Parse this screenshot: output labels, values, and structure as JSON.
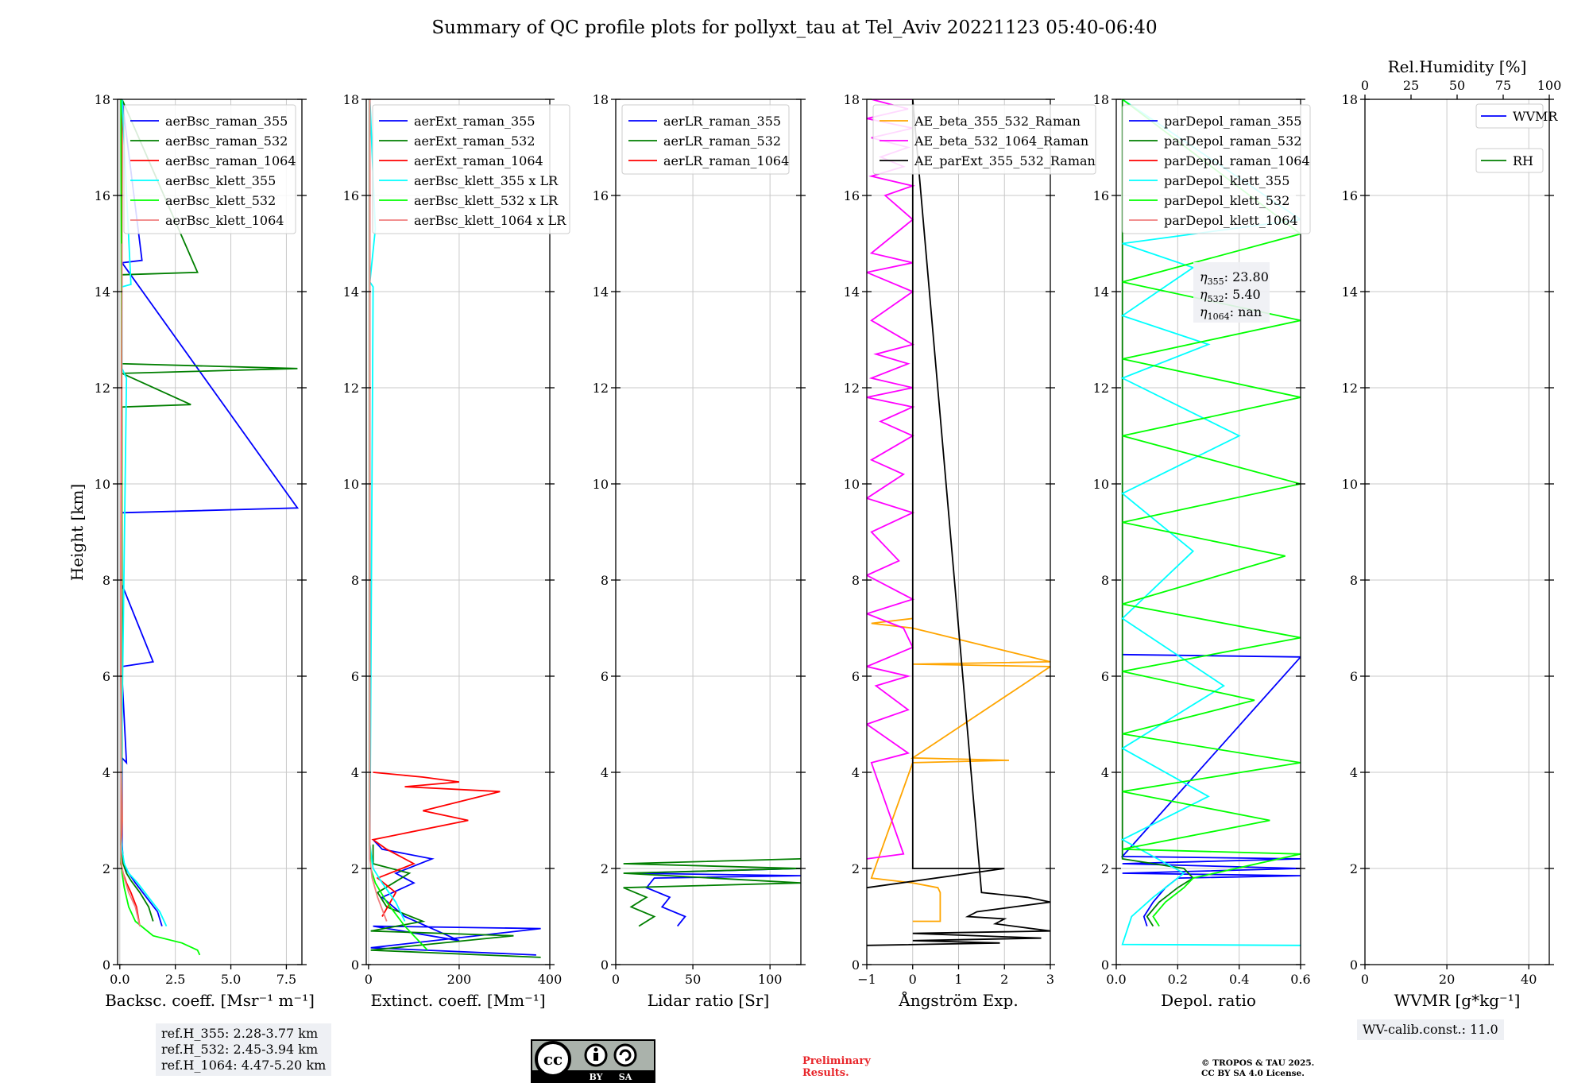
{
  "title": "Summary of QC profile plots for pollyxt_tau at Tel_Aviv 20221123 05:40-06:40",
  "ylabel": "Height [km]",
  "y_ticks": [
    0,
    2,
    4,
    6,
    8,
    10,
    12,
    14,
    16,
    18
  ],
  "chart_data": [
    {
      "type": "line",
      "name": "backscatter",
      "xlabel": "Backsc. coeff. [Msr⁻¹ m⁻¹]",
      "xlim": [
        -0.1,
        8.2
      ],
      "ylim": [
        0,
        18
      ],
      "x_ticks": [
        0,
        2.5,
        5,
        7.5
      ],
      "x_tick_labels": [
        "0.0",
        "2.5",
        "5.0",
        "7.5"
      ],
      "legend": [
        "aerBsc_raman_355",
        "aerBsc_raman_532",
        "aerBsc_raman_1064",
        "aerBsc_klett_355",
        "aerBsc_klett_532",
        "aerBsc_klett_1064"
      ],
      "series": [
        {
          "name": "aerBsc_raman_355",
          "color": "#0000ff",
          "x": [
            1.9,
            1.7,
            1.2,
            0.7,
            0.4,
            0.25,
            0.15,
            0.1,
            0.1,
            0.3,
            0.1,
            0.1,
            1.5,
            0.1,
            0.1,
            0.1,
            8,
            0.1,
            1,
            0.1
          ],
          "y": [
            0.8,
            1.1,
            1.4,
            1.7,
            1.9,
            2.0,
            2.2,
            2.5,
            4.3,
            4.2,
            6.0,
            6.2,
            6.3,
            7.9,
            8.1,
            9.4,
            9.5,
            14.6,
            14.65,
            18
          ]
        },
        {
          "name": "aerBsc_raman_532",
          "color": "#007f00",
          "x": [
            1.5,
            1.3,
            0.9,
            0.5,
            0.3,
            0.15,
            0.1,
            0.05,
            0.1,
            0.1,
            3.2,
            0.1,
            8,
            0.1,
            0.1,
            0.1,
            3.5,
            0.1
          ],
          "y": [
            0.9,
            1.2,
            1.5,
            1.75,
            1.9,
            2.1,
            2.3,
            2.5,
            4.6,
            11.6,
            11.65,
            12.3,
            12.4,
            12.5,
            14.3,
            14.35,
            14.4,
            18
          ]
        },
        {
          "name": "aerBsc_raman_1064",
          "color": "#ff0000",
          "x": [
            0.9,
            0.75,
            0.5,
            0.3,
            0.15,
            0.05,
            0.1,
            0.05,
            0.1
          ],
          "y": [
            0.8,
            1.2,
            1.5,
            1.7,
            1.9,
            2.1,
            3.0,
            6.0,
            18
          ]
        },
        {
          "name": "aerBsc_klett_355",
          "color": "#00ffff",
          "x": [
            2.1,
            1.8,
            1.3,
            0.8,
            0.4,
            0.2,
            0.1,
            0.05,
            0.1,
            0.3,
            0.1,
            0.1,
            0.5,
            0.1
          ],
          "y": [
            0.8,
            1.1,
            1.4,
            1.7,
            1.9,
            2.1,
            2.4,
            2.7,
            5,
            12.2,
            12.4,
            14.1,
            14.15,
            18
          ]
        },
        {
          "name": "aerBsc_klett_532",
          "color": "#00ff00",
          "x": [
            3.6,
            3.5,
            2.8,
            1.5,
            0.7,
            0.4,
            0.2,
            0.1,
            0.05,
            0.1,
            0.05
          ],
          "y": [
            0.2,
            0.3,
            0.45,
            0.6,
            0.9,
            1.2,
            1.6,
            1.9,
            2.2,
            10,
            18
          ]
        },
        {
          "name": "aerBsc_klett_1064",
          "color": "#f08080",
          "x": [
            0.9,
            0.7,
            0.4,
            0.2,
            0.1,
            0.05,
            0.1
          ],
          "y": [
            0.8,
            1.2,
            1.5,
            1.8,
            2.0,
            2.3,
            15
          ]
        }
      ],
      "ref_heights": [
        "ref.H_355: 2.28-3.77 km",
        "ref.H_532: 2.45-3.94 km",
        "ref.H_1064: 4.47-5.20 km"
      ]
    },
    {
      "type": "line",
      "name": "extinction",
      "xlabel": "Extinct. coeff. [Mm⁻¹]",
      "xlim": [
        -5,
        400
      ],
      "ylim": [
        0,
        18
      ],
      "x_ticks": [
        0,
        200,
        400
      ],
      "x_tick_labels": [
        "0",
        "200",
        "400"
      ],
      "legend": [
        "aerExt_raman_355",
        "aerExt_raman_532",
        "aerExt_raman_1064",
        "aerBsc_klett_355 x LR",
        "aerBsc_klett_532 x LR",
        "aerBsc_klett_1064 x LR"
      ],
      "series": [
        {
          "name": "aerExt_raman_355",
          "color": "#0000ff",
          "x": [
            370,
            5,
            380,
            10,
            200,
            80,
            30,
            100,
            60,
            140,
            30,
            10
          ],
          "y": [
            0.2,
            0.35,
            0.75,
            0.8,
            0.5,
            1.0,
            1.4,
            1.7,
            1.9,
            2.2,
            2.4,
            2.6
          ]
        },
        {
          "name": "aerExt_raman_532",
          "color": "#007f00",
          "x": [
            380,
            5,
            320,
            5,
            120,
            40,
            20,
            90,
            10,
            10
          ],
          "y": [
            0.15,
            0.3,
            0.6,
            0.7,
            0.9,
            1.2,
            1.5,
            1.9,
            2.1,
            2.5
          ]
        },
        {
          "name": "aerExt_raman_1064",
          "color": "#ff0000",
          "x": [
            30,
            60,
            20,
            100,
            40,
            10,
            220,
            120,
            290,
            80,
            200,
            120,
            10
          ],
          "y": [
            1.0,
            1.5,
            1.8,
            2.1,
            2.4,
            2.6,
            3.0,
            3.2,
            3.6,
            3.7,
            3.8,
            3.9,
            4.0
          ]
        },
        {
          "name": "aerBsc_klett_355 x LR",
          "color": "#00ffff",
          "x": [
            80,
            60,
            30,
            10,
            3,
            10,
            3,
            15,
            3
          ],
          "y": [
            0.9,
            1.3,
            1.7,
            2.0,
            2.5,
            14.1,
            14.2,
            15.3,
            18
          ]
        },
        {
          "name": "aerBsc_klett_532 x LR",
          "color": "#00ff00",
          "x": [
            130,
            80,
            40,
            15,
            5,
            3,
            3
          ],
          "y": [
            0.3,
            0.8,
            1.3,
            1.7,
            2.0,
            2.5,
            18
          ]
        },
        {
          "name": "aerBsc_klett_1064 x LR",
          "color": "#f08080",
          "x": [
            40,
            20,
            8,
            3,
            3
          ],
          "y": [
            0.9,
            1.4,
            1.8,
            2.2,
            18
          ]
        }
      ]
    },
    {
      "type": "line",
      "name": "lidar_ratio",
      "xlabel": "Lidar ratio [Sr]",
      "xlim": [
        0,
        120
      ],
      "ylim": [
        0,
        18
      ],
      "x_ticks": [
        0,
        50,
        100
      ],
      "x_tick_labels": [
        "0",
        "50",
        "100"
      ],
      "legend": [
        "aerLR_raman_355",
        "aerLR_raman_532",
        "aerLR_raman_1064"
      ],
      "series": [
        {
          "name": "aerLR_raman_355",
          "color": "#0000ff",
          "x": [
            40,
            45,
            30,
            35,
            20,
            25,
            120,
            10,
            120
          ],
          "y": [
            0.8,
            1.0,
            1.2,
            1.4,
            1.6,
            1.8,
            1.85,
            1.9,
            2.0
          ]
        },
        {
          "name": "aerLR_raman_532",
          "color": "#007f00",
          "x": [
            15,
            25,
            10,
            20,
            5,
            120,
            5,
            120,
            5,
            120
          ],
          "y": [
            0.8,
            1.0,
            1.2,
            1.4,
            1.6,
            1.7,
            1.9,
            2.0,
            2.1,
            2.2
          ]
        },
        {
          "name": "aerLR_raman_1064",
          "color": "#ff0000",
          "x": [],
          "y": []
        }
      ]
    },
    {
      "type": "line",
      "name": "angstrom",
      "xlabel": "Ångström Exp.",
      "xlim": [
        -1,
        3
      ],
      "ylim": [
        0,
        18
      ],
      "x_ticks": [
        -1,
        0,
        1,
        2,
        3
      ],
      "x_tick_labels": [
        "−1",
        "0",
        "1",
        "2",
        "3"
      ],
      "legend": [
        "AE_beta_355_532_Raman",
        "AE_beta_532_1064_Raman",
        "AE_parExt_355_532_Raman"
      ],
      "series": [
        {
          "name": "AE_beta_355_532_Raman",
          "color": "#ffa500",
          "x": [
            0,
            0.6,
            0.6,
            0.55,
            0,
            -0.9,
            0,
            2.1,
            0,
            3,
            0,
            3,
            0,
            -0.9,
            0
          ],
          "y": [
            0.9,
            0.9,
            1.5,
            1.6,
            1.7,
            1.8,
            4.2,
            4.25,
            4.3,
            6.2,
            6.25,
            6.3,
            7.0,
            7.1,
            7.2
          ]
        },
        {
          "name": "AE_beta_532_1064_Raman",
          "color": "#ff00ff",
          "x": [
            -1,
            -0.2,
            -0.9,
            -0.1,
            -1,
            -0.1,
            -0.8,
            -0.1,
            -1,
            0,
            -0.2,
            -1,
            0,
            -1,
            -0.3,
            -0.9,
            0,
            -1,
            -0.2,
            -0.9,
            0,
            -0.7,
            0,
            -1,
            0,
            -0.9,
            -0.1,
            -0.8,
            0,
            -0.9,
            0,
            -1,
            0,
            -0.9,
            0,
            -0.6,
            0,
            -0.9,
            -0.2,
            -0.7,
            -0.1,
            -0.9,
            0,
            -1,
            -0.1,
            -0.9,
            0
          ],
          "y": [
            2.2,
            2.3,
            4.2,
            4.4,
            5.0,
            5.3,
            5.8,
            6.0,
            6.2,
            6.6,
            7.0,
            7.3,
            7.6,
            8.1,
            8.4,
            9.0,
            9.4,
            9.7,
            10.2,
            10.5,
            11.0,
            11.3,
            11.6,
            11.8,
            12.0,
            12.2,
            12.5,
            12.7,
            12.9,
            13.4,
            14.0,
            14.4,
            14.6,
            14.8,
            15.5,
            16.0,
            16.2,
            16.4,
            16.6,
            16.8,
            17.0,
            17.2,
            17.4,
            17.6,
            17.8,
            18.0,
            18.0
          ]
        },
        {
          "name": "AE_parExt_355_532_Raman",
          "color": "#000000",
          "x": [
            -1,
            2,
            0,
            0,
            1.5,
            2.5,
            3,
            2.2,
            1.4,
            1.2,
            2.0,
            1.8,
            3,
            0,
            2.8,
            0,
            1.9,
            -1
          ],
          "y": [
            1.6,
            2.0,
            2.0,
            18,
            1.5,
            1.4,
            1.3,
            1.2,
            1.1,
            1.0,
            0.95,
            0.85,
            0.7,
            0.65,
            0.55,
            0.5,
            0.45,
            0.4
          ]
        }
      ]
    },
    {
      "type": "line",
      "name": "depol",
      "xlabel": "Depol. ratio",
      "xlim": [
        0,
        0.6
      ],
      "ylim": [
        0,
        18
      ],
      "x_ticks": [
        0,
        0.2,
        0.4,
        0.6
      ],
      "x_tick_labels": [
        "0.0",
        "0.2",
        "0.4",
        "0.6"
      ],
      "legend": [
        "parDepol_raman_355",
        "parDepol_raman_532",
        "parDepol_raman_1064",
        "parDepol_klett_355",
        "parDepol_klett_532",
        "parDepol_klett_1064"
      ],
      "series": [
        {
          "name": "parDepol_raman_355",
          "color": "#0000ff",
          "x": [
            0.1,
            0.09,
            0.12,
            0.16,
            0.2,
            0.6,
            0.02,
            0.6,
            0.02,
            0.6,
            0.02,
            0.6,
            0.02
          ],
          "y": [
            0.8,
            1.0,
            1.3,
            1.6,
            1.8,
            1.85,
            1.9,
            2.0,
            2.1,
            2.2,
            2.25,
            6.4,
            6.45
          ]
        },
        {
          "name": "parDepol_raman_532",
          "color": "#007f00",
          "x": [
            0.12,
            0.1,
            0.14,
            0.2,
            0.25,
            0.22,
            0.02,
            0.02
          ],
          "y": [
            0.8,
            1.0,
            1.3,
            1.6,
            1.8,
            2.0,
            2.2,
            18
          ]
        },
        {
          "name": "parDepol_raman_1064",
          "color": "#ff0000",
          "x": [],
          "y": []
        },
        {
          "name": "parDepol_klett_355",
          "color": "#00ffff",
          "x": [
            0.6,
            0.02,
            0.05,
            0.12,
            0.18,
            0.22,
            0.02,
            0.3,
            0.02,
            0.35,
            0.02,
            0.25,
            0.02,
            0.4,
            0.02,
            0.3,
            0.02,
            0.25,
            0.02,
            0.6,
            0.02
          ],
          "y": [
            0.4,
            0.42,
            1.0,
            1.4,
            1.7,
            1.9,
            2.6,
            3.5,
            4.5,
            5.8,
            7.2,
            8.6,
            9.8,
            11.0,
            12.2,
            12.9,
            13.5,
            14.5,
            15.0,
            15.5,
            18
          ]
        },
        {
          "name": "parDepol_klett_532",
          "color": "#00ff00",
          "x": [
            0.14,
            0.12,
            0.16,
            0.22,
            0.25,
            0.6,
            0.02,
            0.5,
            0.02,
            0.6,
            0.02,
            0.45,
            0.02,
            0.6,
            0.02,
            0.55,
            0.02,
            0.6,
            0.02,
            0.6,
            0.02,
            0.6,
            0.02,
            0.6,
            0.02
          ],
          "y": [
            0.8,
            1.0,
            1.3,
            1.6,
            1.8,
            2.3,
            2.4,
            3.0,
            3.6,
            4.2,
            4.8,
            5.5,
            6.1,
            6.8,
            7.5,
            8.5,
            9.2,
            10.0,
            11.0,
            11.8,
            12.6,
            13.4,
            14.2,
            15.2,
            18
          ]
        },
        {
          "name": "parDepol_klett_1064",
          "color": "#f08080",
          "x": [],
          "y": []
        }
      ],
      "eta": [
        {
          "label": "η",
          "sub": "355",
          "value": ": 23.80"
        },
        {
          "label": "η",
          "sub": "532",
          "value": ": 5.40"
        },
        {
          "label": "η",
          "sub": "1064",
          "value": ": nan"
        }
      ]
    },
    {
      "type": "line",
      "name": "wvmr",
      "xlabel": "WVMR [g*kg⁻¹]",
      "xlim": [
        0,
        45
      ],
      "ylim": [
        0,
        18
      ],
      "x_ticks": [
        0,
        20,
        40
      ],
      "x_tick_labels": [
        "0",
        "20",
        "40"
      ],
      "top_xlabel": "Rel.Humidity [%]",
      "top_xlim": [
        0,
        100
      ],
      "top_ticks": [
        0,
        25,
        50,
        75,
        100
      ],
      "top_tick_labels": [
        "0",
        "25",
        "50",
        "75",
        "100"
      ],
      "legend": [
        "WVMR",
        "RH"
      ],
      "series": [
        {
          "name": "WVMR",
          "color": "#0000ff",
          "x": [],
          "y": []
        },
        {
          "name": "RH",
          "color": "#007f00",
          "x": [],
          "y": []
        }
      ],
      "calib": "WV-calib.const.: 11.0"
    }
  ],
  "footer": {
    "preliminary": [
      "Preliminary",
      "Results."
    ],
    "copyright": [
      "© TROPOS & TAU 2025.",
      "CC BY SA 4.0 License."
    ],
    "license_badge": [
      "BY",
      "SA"
    ]
  }
}
